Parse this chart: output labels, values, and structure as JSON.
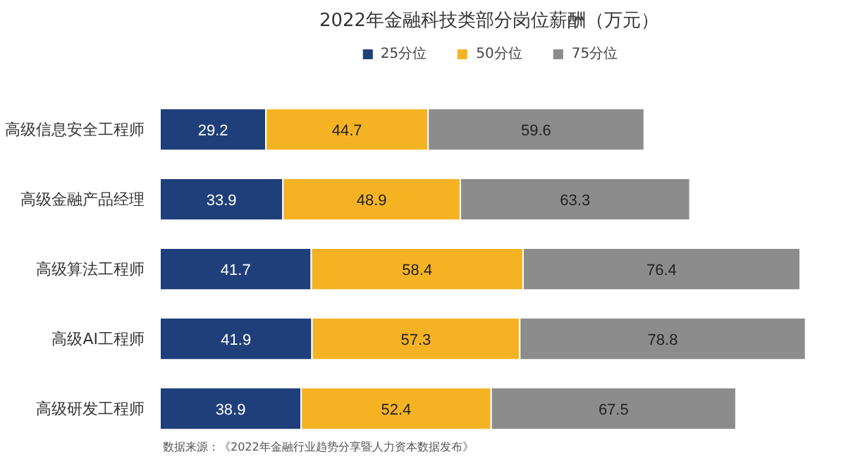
{
  "chart_data": {
    "type": "bar",
    "orientation": "horizontal",
    "stacked": true,
    "title": "2022年金融科技类部分岗位薪酬（万元）",
    "categories": [
      "高级信息安全工程师",
      "高级金融产品经理",
      "高级算法工程师",
      "高级AI工程师",
      "高级研发工程师"
    ],
    "series": [
      {
        "name": "25分位",
        "color": "#1f3f7a",
        "values": [
          29.2,
          33.9,
          41.7,
          41.9,
          38.9
        ]
      },
      {
        "name": "50分位",
        "color": "#f5b324",
        "values": [
          44.7,
          48.9,
          58.4,
          57.3,
          52.4
        ]
      },
      {
        "name": "75分位",
        "color": "#8c8c8c",
        "values": [
          59.6,
          63.3,
          76.4,
          78.8,
          67.5
        ]
      }
    ],
    "data_labels": true,
    "legend": "top",
    "grid": false,
    "tick_labels": "y",
    "annotations": [
      "数据来源：《2022年金融行业趋势分享暨人力资本数据发布》"
    ]
  }
}
